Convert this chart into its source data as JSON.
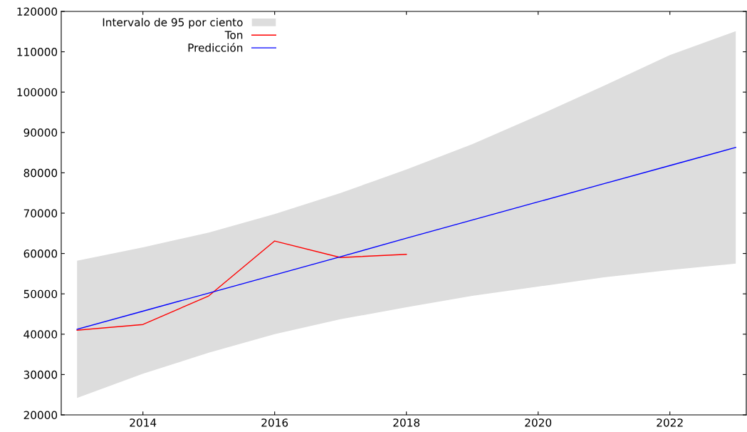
{
  "chart_data": {
    "type": "line",
    "x": [
      2013,
      2014,
      2015,
      2016,
      2017,
      2018,
      2019,
      2020,
      2021,
      2022,
      2023
    ],
    "series": [
      {
        "name": "Intervalo de 95 por ciento",
        "type": "area",
        "color": "#dddddd",
        "values": [
          null,
          null,
          null,
          null,
          null,
          null,
          null,
          null,
          null,
          null,
          null
        ],
        "lower": [
          24200,
          30200,
          35400,
          40000,
          43700,
          46700,
          49500,
          51800,
          54100,
          55900,
          57500
        ],
        "upper": [
          58200,
          61500,
          65200,
          69800,
          75000,
          80800,
          87100,
          94200,
          101600,
          109200,
          115100
        ]
      },
      {
        "name": "Ton",
        "type": "line",
        "color": "#ff0000",
        "x": [
          2013,
          2014,
          2015,
          2016,
          2017,
          2018
        ],
        "values": [
          41000,
          42400,
          49500,
          63100,
          59000,
          59800
        ]
      },
      {
        "name": "Predicción",
        "color": "#0000ff",
        "values": [
          41200,
          45700,
          50200,
          54700,
          59200,
          63800,
          68300,
          72800,
          77300,
          81800,
          86300
        ]
      }
    ],
    "xlim": [
      2012.76,
      2023.16
    ],
    "xticks": [
      2014,
      2016,
      2018,
      2020,
      2022
    ],
    "ylim": [
      20000,
      120000
    ],
    "yticks": [
      20000,
      30000,
      40000,
      50000,
      60000,
      70000,
      80000,
      90000,
      100000,
      110000,
      120000
    ],
    "grid": false,
    "legend": "top left"
  }
}
